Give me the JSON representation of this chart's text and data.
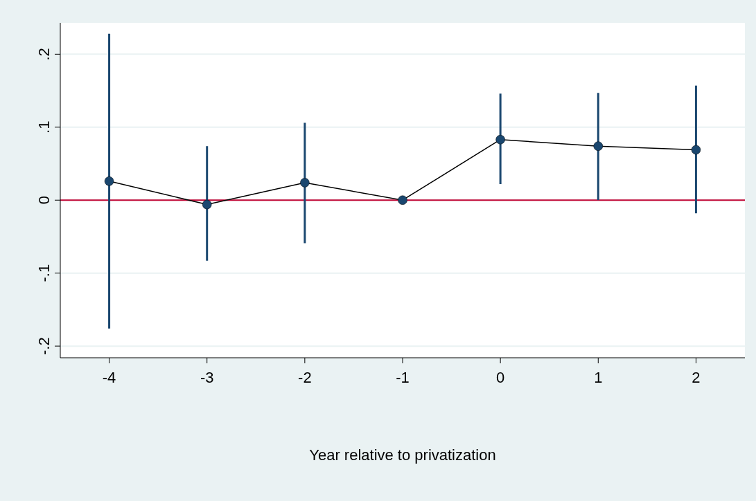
{
  "chart_data": {
    "type": "line",
    "xlabel": "Year relative to privatization",
    "x": [
      -4,
      -3,
      -2,
      -1,
      0,
      1,
      2
    ],
    "series": [
      {
        "color": "#1a476f",
        "values": [
          0.026,
          -0.006,
          0.024,
          0,
          0.083,
          0.074,
          0.069
        ],
        "errors": [
          [
            -0.176,
            0.228
          ],
          [
            -0.083,
            0.074
          ],
          [
            -0.059,
            0.106
          ],
          null,
          [
            0.022,
            0.146
          ],
          [
            0,
            0.147
          ],
          [
            -0.018,
            0.157
          ]
        ]
      }
    ],
    "xlim": [
      -4.5,
      2.5
    ],
    "xticks": [
      -4,
      -3,
      -2,
      -1,
      0,
      1,
      2
    ],
    "ylim": [
      -0.216,
      0.243
    ],
    "yticks": [
      {
        "value": -0.2,
        "label": "-.2"
      },
      {
        "value": -0.1,
        "label": "-.1"
      },
      0,
      {
        "value": 0.1,
        "label": ".1"
      },
      {
        "value": 0.2,
        "label": ".2"
      }
    ],
    "ref_lines": [
      {
        "axis": "y",
        "value": 0,
        "color": "#c10534"
      }
    ],
    "grid": "y",
    "marker": "circle",
    "line_style": "solid"
  }
}
